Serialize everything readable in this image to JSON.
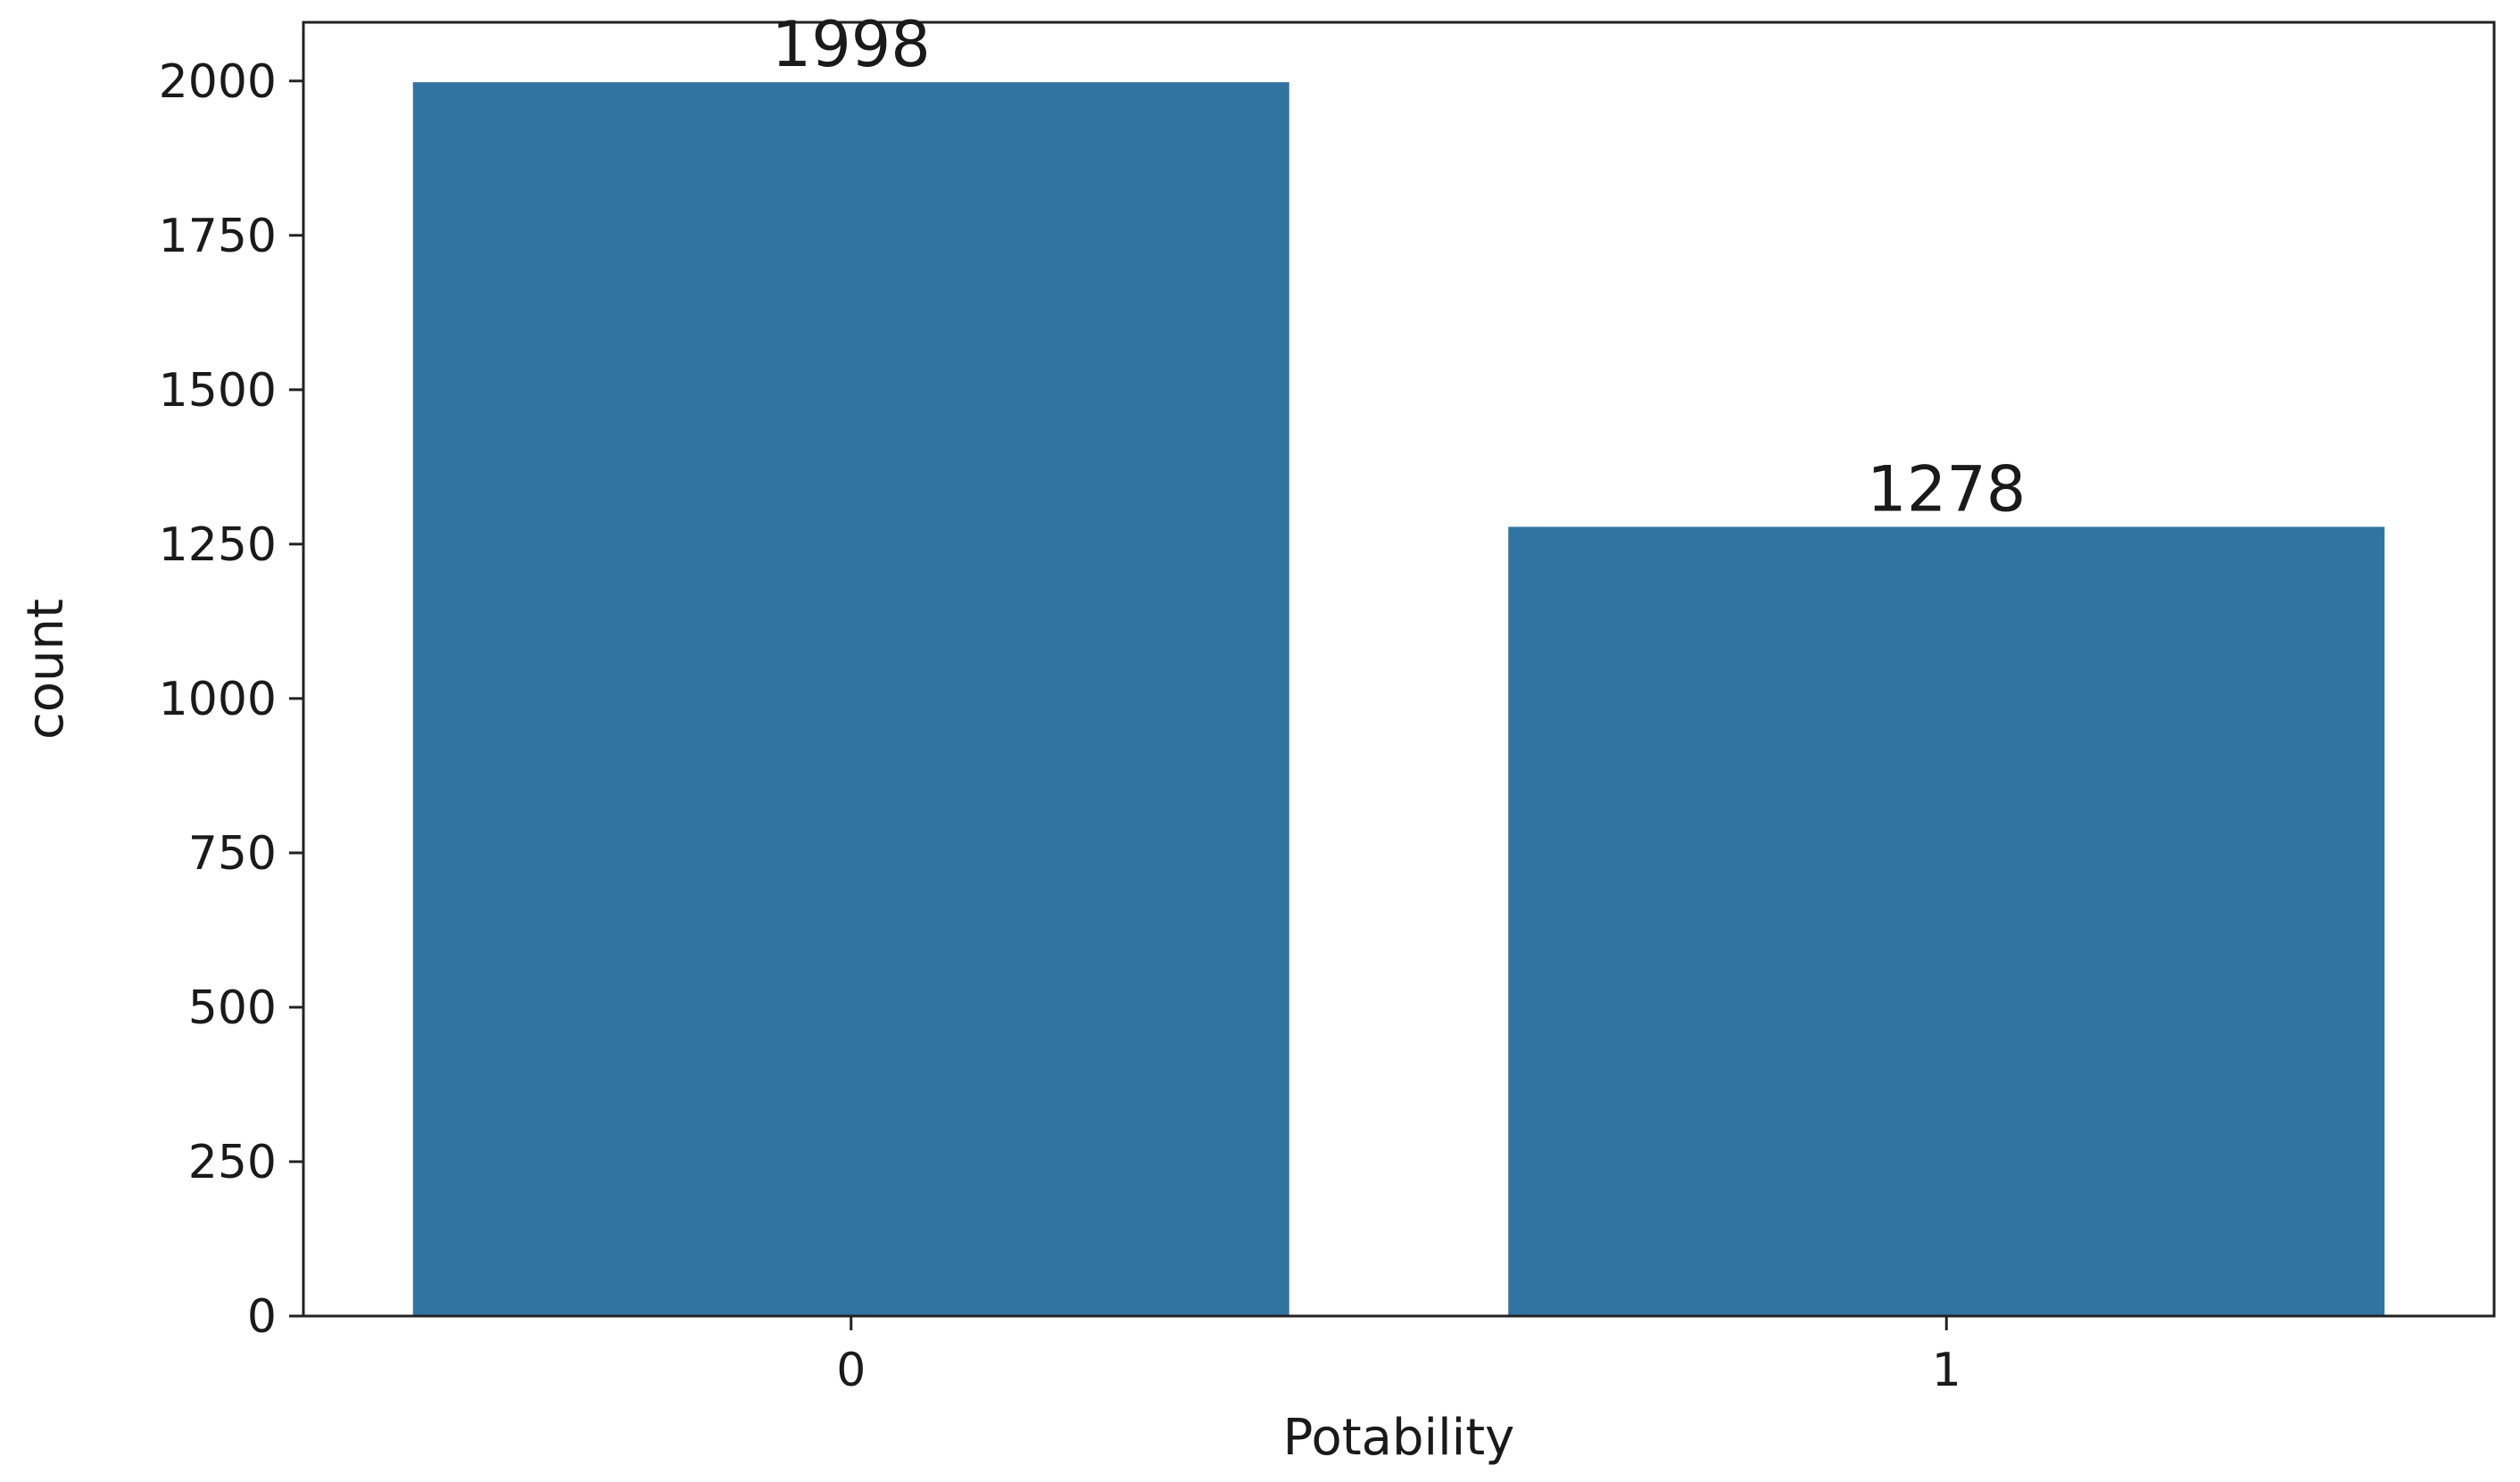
{
  "chart_data": {
    "type": "bar",
    "categories": [
      "0",
      "1"
    ],
    "values": [
      1998,
      1278
    ],
    "data_labels": [
      "1998",
      "1278"
    ],
    "xlabel": "Potability",
    "ylabel": "count",
    "ylim": [
      0,
      2095
    ],
    "yticks": [
      0,
      250,
      500,
      750,
      1000,
      1250,
      1500,
      1750,
      2000
    ],
    "ytick_labels": [
      "0",
      "250",
      "500",
      "750",
      "1000",
      "1250",
      "1500",
      "1750",
      "2000"
    ],
    "grid": false,
    "legend": "none",
    "bar_color": "#3274a1"
  }
}
